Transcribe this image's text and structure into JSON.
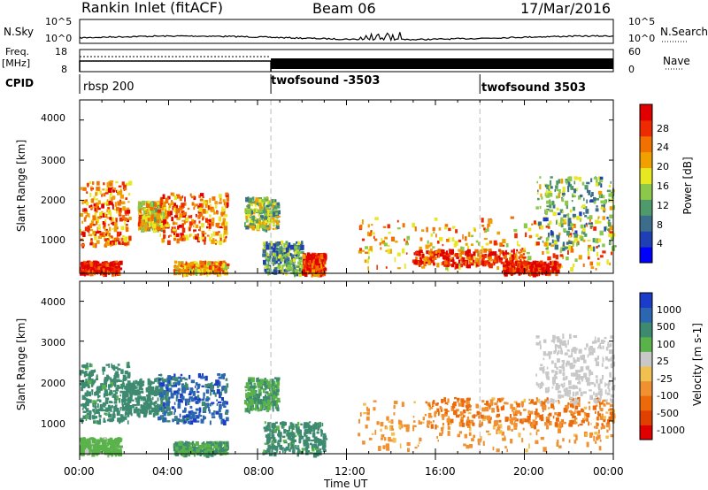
{
  "header": {
    "station": "Rankin Inlet (fitACF)",
    "beam": "Beam 06",
    "date": "17/Mar/2016"
  },
  "noise_panel": {
    "left_label": "N.Sky",
    "right_label": "N.Search",
    "left_ticks": [
      "10^5",
      "10^0"
    ],
    "right_ticks": [
      "10^5",
      "10^0"
    ]
  },
  "freq_panel": {
    "left_label_1": "Freq.",
    "left_label_2": "[MHz]",
    "left_ticks": [
      "18",
      "8"
    ],
    "right_label": "Nave",
    "right_ticks": [
      "60",
      "0"
    ]
  },
  "cpid": {
    "label": "CPID",
    "segments": [
      {
        "name": "rbsp 200",
        "start_hour": 0.0
      },
      {
        "name": "twofsound -3503",
        "start_hour": 8.6
      },
      {
        "name": "twofsound 3503",
        "start_hour": 18.0
      }
    ]
  },
  "time_axis": {
    "label": "Time UT",
    "ticks": [
      "00:00",
      "04:00",
      "08:00",
      "12:00",
      "16:00",
      "20:00",
      "00:00"
    ]
  },
  "chart_data": [
    {
      "type": "heatmap",
      "title": "Power",
      "xlabel": "Time UT",
      "ylabel": "Slant Range [km]",
      "x_range_hours": [
        0,
        24
      ],
      "ylim": [
        180,
        4500
      ],
      "yticks": [
        "4000",
        "3000",
        "2000",
        "1000"
      ],
      "colorbar_label": "Power [dB]",
      "colorbar_ticks": [
        "28",
        "24",
        "20",
        "16",
        "12",
        "8",
        "4"
      ],
      "colors": [
        "#0000ff",
        "#1f3fb4",
        "#3c6e8c",
        "#4f9a6a",
        "#8cc84a",
        "#e8e822",
        "#f0a000",
        "#f07000",
        "#ee2a00",
        "#e00000"
      ],
      "echo_regions": [
        {
          "t0": 0.0,
          "t1": 1.8,
          "r0": 200,
          "r1": 500,
          "value": 28
        },
        {
          "t0": 0.0,
          "t1": 2.2,
          "r0": 900,
          "r1": 2500,
          "value": 22
        },
        {
          "t0": 2.6,
          "t1": 3.8,
          "r0": 1300,
          "r1": 2000,
          "value": 18
        },
        {
          "t0": 3.6,
          "t1": 6.6,
          "r0": 1000,
          "r1": 2200,
          "value": 22
        },
        {
          "t0": 4.2,
          "t1": 6.6,
          "r0": 200,
          "r1": 500,
          "value": 20
        },
        {
          "t0": 7.4,
          "t1": 8.9,
          "r0": 1300,
          "r1": 2100,
          "value": 14
        },
        {
          "t0": 8.2,
          "t1": 10.0,
          "r0": 200,
          "r1": 1000,
          "value": 10
        },
        {
          "t0": 10.0,
          "t1": 11.0,
          "r0": 200,
          "r1": 700,
          "value": 26
        },
        {
          "t0": 12.5,
          "t1": 24.0,
          "r0": 300,
          "r1": 1600,
          "value": 20
        },
        {
          "t0": 15.0,
          "t1": 20.0,
          "r0": 400,
          "r1": 800,
          "value": 26
        },
        {
          "t0": 20.5,
          "t1": 24.0,
          "r0": 800,
          "r1": 2600,
          "value": 12
        },
        {
          "t0": 19.0,
          "t1": 21.5,
          "r0": 200,
          "r1": 500,
          "value": 28
        }
      ]
    },
    {
      "type": "heatmap",
      "title": "Velocity",
      "xlabel": "Time UT",
      "ylabel": "Slant Range [km]",
      "x_range_hours": [
        0,
        24
      ],
      "ylim": [
        180,
        4500
      ],
      "yticks": [
        "4000",
        "3000",
        "2000",
        "1000"
      ],
      "colorbar_label": "Velocity [m s-1]",
      "colorbar_ticks": [
        "1000",
        "500",
        "100",
        "25",
        "-25",
        "-100",
        "-500",
        "-1000"
      ],
      "colors": [
        "#1a3cc8",
        "#2d66b0",
        "#3d8a70",
        "#5ab34a",
        "#c8c8c8",
        "#f0c050",
        "#f09030",
        "#ec6a0a",
        "#e04000",
        "#e00000"
      ],
      "echo_regions": [
        {
          "t0": 0.0,
          "t1": 2.2,
          "r0": 1000,
          "r1": 2500,
          "value": 200
        },
        {
          "t0": 0.0,
          "t1": 1.8,
          "r0": 200,
          "r1": 600,
          "value": 50
        },
        {
          "t0": 1.8,
          "t1": 4.0,
          "r0": 1200,
          "r1": 2100,
          "value": 300
        },
        {
          "t0": 3.5,
          "t1": 6.6,
          "r0": 1000,
          "r1": 2200,
          "value": 800
        },
        {
          "t0": 4.2,
          "t1": 6.6,
          "r0": 200,
          "r1": 500,
          "value": 100
        },
        {
          "t0": 7.4,
          "t1": 8.9,
          "r0": 1300,
          "r1": 2100,
          "value": 100
        },
        {
          "t0": 8.2,
          "t1": 11.0,
          "r0": 200,
          "r1": 1000,
          "value": 200
        },
        {
          "t0": 12.5,
          "t1": 24.0,
          "r0": 300,
          "r1": 1600,
          "value": -150
        },
        {
          "t0": 15.5,
          "t1": 24.0,
          "r0": 900,
          "r1": 1600,
          "value": -600
        },
        {
          "t0": 20.5,
          "t1": 24.0,
          "r0": 1500,
          "r1": 3200,
          "value": 0
        }
      ]
    }
  ]
}
